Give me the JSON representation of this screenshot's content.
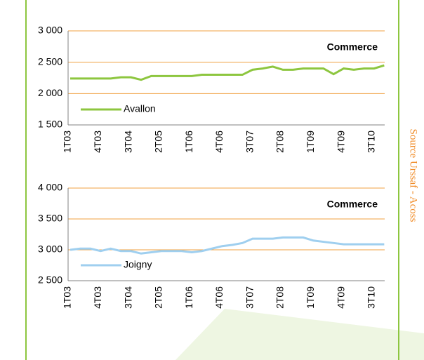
{
  "source": "Source Urssaf - Acoss",
  "chart_data": [
    {
      "type": "line",
      "annotation": "Commerce",
      "legend": "lower left",
      "grid": true,
      "categories": [
        "1T03",
        null,
        null,
        "4T03",
        null,
        null,
        "3T04",
        null,
        null,
        "2T05",
        null,
        null,
        "1T06",
        null,
        null,
        "4T06",
        null,
        null,
        "3T07",
        null,
        null,
        "2T08",
        null,
        null,
        "1T09",
        null,
        null,
        "4T09",
        null,
        null,
        "3T10",
        null
      ],
      "series": [
        {
          "name": "Avallon",
          "color": "#8dc63f",
          "values": [
            2240,
            2240,
            2240,
            2240,
            2240,
            2260,
            2260,
            2220,
            2280,
            2280,
            2280,
            2280,
            2280,
            2300,
            2300,
            2300,
            2300,
            2300,
            2380,
            2400,
            2430,
            2380,
            2380,
            2400,
            2400,
            2400,
            2310,
            2400,
            2380,
            2400,
            2400,
            2450
          ]
        }
      ],
      "ylim": [
        1500,
        3000
      ],
      "yticks": [
        {
          "value": 1500,
          "label": "1 500"
        },
        {
          "value": 2000,
          "label": "2 000"
        },
        {
          "value": 2500,
          "label": "2 500"
        },
        {
          "value": 3000,
          "label": "3 000"
        }
      ]
    },
    {
      "type": "line",
      "annotation": "Commerce",
      "legend": "lower left",
      "grid": true,
      "categories": [
        "1T03",
        null,
        null,
        "4T03",
        null,
        null,
        "3T04",
        null,
        null,
        "2T05",
        null,
        null,
        "1T06",
        null,
        null,
        "4T06",
        null,
        null,
        "3T07",
        null,
        null,
        "2T08",
        null,
        null,
        "1T09",
        null,
        null,
        "4T09",
        null,
        null,
        "3T10",
        null
      ],
      "series": [
        {
          "name": "Joigny",
          "color": "#9fcfef",
          "values": [
            3000,
            3020,
            3020,
            2980,
            3020,
            2980,
            2980,
            2940,
            2960,
            2980,
            2980,
            2980,
            2960,
            2980,
            3020,
            3060,
            3080,
            3110,
            3180,
            3180,
            3180,
            3200,
            3200,
            3200,
            3150,
            3130,
            3110,
            3090,
            3090,
            3090,
            3090,
            3090
          ]
        }
      ],
      "ylim": [
        2500,
        4000
      ],
      "yticks": [
        {
          "value": 2500,
          "label": "2 500"
        },
        {
          "value": 3000,
          "label": "3 000"
        },
        {
          "value": 3500,
          "label": "3 500"
        },
        {
          "value": 4000,
          "label": "4 000"
        }
      ]
    }
  ]
}
